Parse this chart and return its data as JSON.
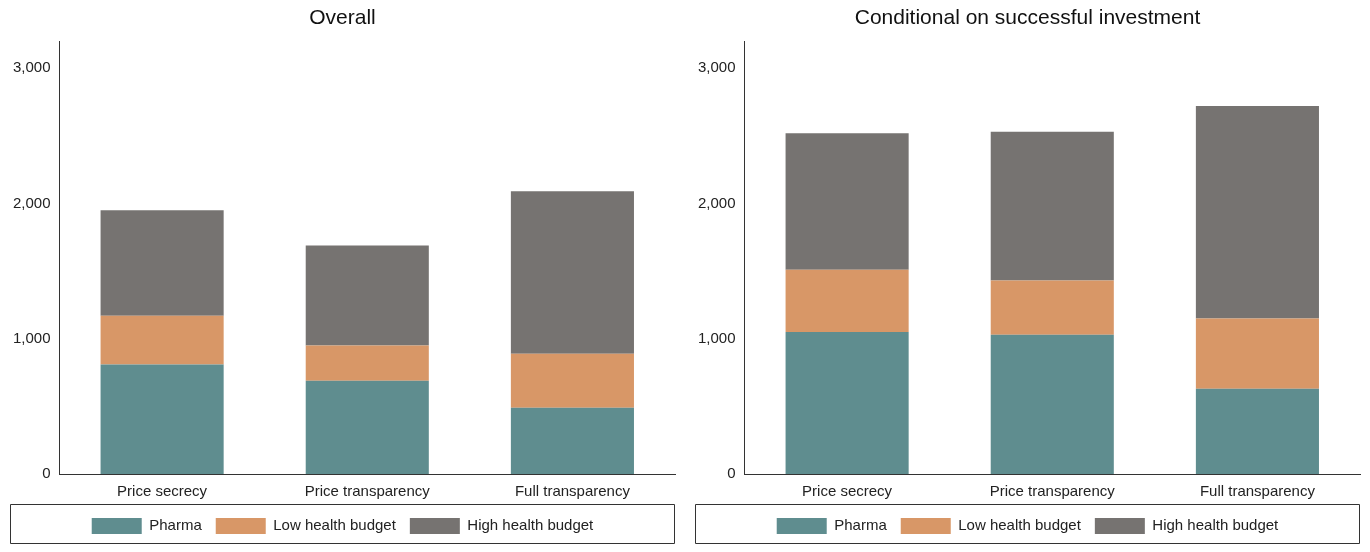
{
  "chart_data": [
    {
      "type": "bar",
      "title": "Overall",
      "categories": [
        "Price secrecy",
        "Price transparency",
        "Full transparency"
      ],
      "stacked": true,
      "ylim": [
        0,
        3200
      ],
      "yticks": [
        0,
        {
          "value": 1000,
          "label": "1,000"
        },
        {
          "value": 2000,
          "label": "2,000"
        },
        {
          "value": 3000,
          "label": "3,000"
        }
      ],
      "grid": false,
      "legend": "bottom",
      "series": [
        {
          "name": "Pharma",
          "color": "#5f8d8f",
          "values": [
            810,
            690,
            490
          ]
        },
        {
          "name": "Low health budget",
          "color": "#d89767",
          "values": [
            360,
            260,
            400
          ]
        },
        {
          "name": "High health budget",
          "color": "#767371",
          "values": [
            780,
            740,
            1200
          ]
        }
      ]
    },
    {
      "type": "bar",
      "title": "Conditional on successful investment",
      "categories": [
        "Price secrecy",
        "Price transparency",
        "Full transparency"
      ],
      "stacked": true,
      "ylim": [
        0,
        3200
      ],
      "yticks": [
        0,
        {
          "value": 1000,
          "label": "1,000"
        },
        {
          "value": 2000,
          "label": "2,000"
        },
        {
          "value": 3000,
          "label": "3,000"
        }
      ],
      "grid": false,
      "legend": "bottom",
      "series": [
        {
          "name": "Pharma",
          "color": "#5f8d8f",
          "values": [
            1050,
            1030,
            630
          ]
        },
        {
          "name": "Low health budget",
          "color": "#d89767",
          "values": [
            460,
            400,
            520
          ]
        },
        {
          "name": "High health budget",
          "color": "#767371",
          "values": [
            1010,
            1100,
            1570
          ]
        }
      ]
    }
  ]
}
